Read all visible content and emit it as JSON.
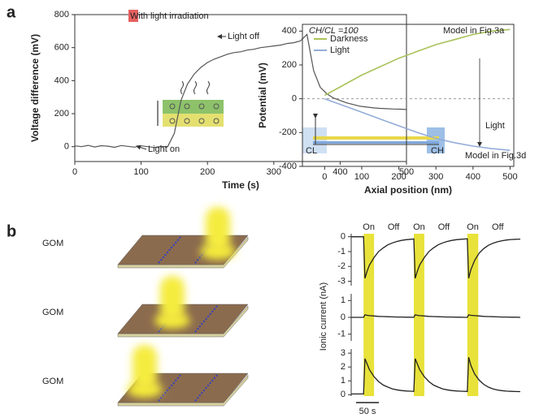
{
  "panel_labels": [
    "a",
    "b"
  ],
  "illustration": {
    "labels": [
      "GOM",
      "GOM",
      "GOM"
    ]
  },
  "chart_data": [
    {
      "type": "line",
      "xlabel": "Time (s)",
      "ylabel": "Voltage difference (mV)",
      "color": "#555555",
      "x": [
        0,
        10,
        20,
        30,
        40,
        50,
        60,
        70,
        80,
        90,
        100,
        110,
        120,
        130,
        140,
        150,
        160,
        170,
        180,
        190,
        200,
        210,
        220,
        230,
        240,
        250,
        260,
        270,
        280,
        290,
        300,
        310,
        320,
        330,
        340,
        350,
        360,
        370,
        380,
        390,
        400,
        410,
        420,
        430,
        440,
        450,
        460,
        470,
        480,
        490,
        500
      ],
      "values": [
        5,
        0,
        8,
        -2,
        6,
        3,
        -4,
        7,
        2,
        -3,
        5,
        0,
        -5,
        2,
        0,
        80,
        280,
        380,
        440,
        480,
        510,
        530,
        545,
        560,
        570,
        575,
        585,
        590,
        600,
        605,
        610,
        615,
        625,
        630,
        640,
        680,
        460,
        360,
        320,
        295,
        280,
        265,
        255,
        245,
        240,
        235,
        232,
        230,
        228,
        227,
        225
      ],
      "xlim": [
        0,
        500
      ],
      "xticks": [
        0,
        100,
        200,
        300,
        400,
        500
      ],
      "ylim": [
        -90,
        800
      ],
      "yticks": [
        0,
        200,
        400,
        600,
        800
      ],
      "annotations": [
        "With light irradiation",
        "Light off",
        "Light on"
      ]
    },
    {
      "type": "line",
      "xlabel": "Axial position (nm)",
      "ylabel": "Potential (mV)",
      "zero_line": true,
      "x": [
        0,
        50,
        100,
        150,
        200,
        250,
        300,
        350,
        400,
        450,
        500
      ],
      "series": [
        {
          "name": "Darkness",
          "color": "#a9c25a",
          "values": [
            20,
            80,
            140,
            190,
            240,
            280,
            320,
            350,
            380,
            400,
            410
          ]
        },
        {
          "name": "Light",
          "color": "#94acd9",
          "values": [
            0,
            -40,
            -80,
            -120,
            -160,
            -200,
            -235,
            -260,
            -280,
            -295,
            -305
          ]
        }
      ],
      "xlim": [
        -60,
        510
      ],
      "xticks": [
        0,
        100,
        200,
        300,
        400,
        500
      ],
      "ylim": [
        -400,
        440
      ],
      "yticks": [
        -400,
        -200,
        0,
        200,
        400
      ],
      "annotations": [
        "CH/CL =100",
        "Model in Fig.3a",
        "Light",
        "Model in Fig.3d",
        "CL",
        "CH"
      ]
    },
    {
      "type": "stacked-line",
      "ylabel": "Ionic current (nA)",
      "color": "#222222",
      "band_color": "#e8e23a",
      "x": [
        0,
        10,
        20,
        27,
        30,
        35,
        40,
        50,
        60,
        70,
        80,
        90,
        100,
        110,
        120,
        130,
        137,
        140,
        145,
        150,
        160,
        170,
        180,
        190,
        200,
        210,
        220,
        230,
        240,
        250,
        254,
        257,
        262,
        270,
        280,
        290,
        300,
        310,
        320,
        330,
        340,
        350,
        360,
        370
      ],
      "xlim": [
        0,
        370
      ],
      "light_on": [
        [
          27,
          50
        ],
        [
          137,
          160
        ],
        [
          254,
          278
        ]
      ],
      "annotations": [
        "On",
        "Off",
        "On",
        "Off",
        "On",
        "Off"
      ],
      "scalebar": {
        "value": 50,
        "label": "50 s"
      },
      "panels": [
        {
          "ylim": [
            -3.3,
            0.2
          ],
          "yticks": [
            0,
            -1,
            -2,
            -3
          ],
          "values": [
            0,
            0,
            0,
            0,
            -2.8,
            -2.3,
            -1.9,
            -1.4,
            -1.0,
            -0.75,
            -0.55,
            -0.42,
            -0.32,
            -0.25,
            -0.2,
            -0.17,
            -0.15,
            -2.8,
            -2.3,
            -1.9,
            -1.4,
            -1.0,
            -0.75,
            -0.55,
            -0.42,
            -0.32,
            -0.25,
            -0.2,
            -0.17,
            -0.15,
            -0.14,
            -2.8,
            -2.2,
            -1.6,
            -1.1,
            -0.8,
            -0.58,
            -0.44,
            -0.34,
            -0.27,
            -0.22,
            -0.19,
            -0.17,
            -0.16
          ]
        },
        {
          "ylim": [
            -1.4,
            1.4
          ],
          "yticks": [
            1,
            0,
            -1
          ],
          "values": [
            0,
            0,
            0,
            0,
            0.15,
            0.12,
            0.1,
            0.08,
            0.06,
            0.05,
            0.04,
            0.03,
            0.02,
            0.02,
            0.01,
            0.01,
            0,
            0.15,
            0.12,
            0.1,
            0.08,
            0.06,
            0.05,
            0.04,
            0.03,
            0.02,
            0.02,
            0.01,
            0.01,
            0,
            0,
            0.15,
            0.12,
            0.1,
            0.08,
            0.06,
            0.05,
            0.04,
            0.03,
            0.02,
            0.02,
            0.01,
            0.01,
            0
          ]
        },
        {
          "ylim": [
            -0.1,
            3.3
          ],
          "yticks": [
            0,
            1,
            2,
            3
          ],
          "values": [
            0.05,
            0.05,
            0.05,
            0.05,
            2.6,
            2.2,
            1.8,
            1.3,
            0.95,
            0.7,
            0.55,
            0.42,
            0.35,
            0.3,
            0.27,
            0.25,
            0.24,
            2.6,
            2.2,
            1.8,
            1.3,
            0.95,
            0.7,
            0.55,
            0.42,
            0.35,
            0.3,
            0.27,
            0.25,
            0.24,
            0.23,
            2.7,
            2.1,
            1.5,
            1.05,
            0.75,
            0.55,
            0.42,
            0.34,
            0.29,
            0.26,
            0.24,
            0.23,
            0.22
          ]
        }
      ]
    }
  ]
}
